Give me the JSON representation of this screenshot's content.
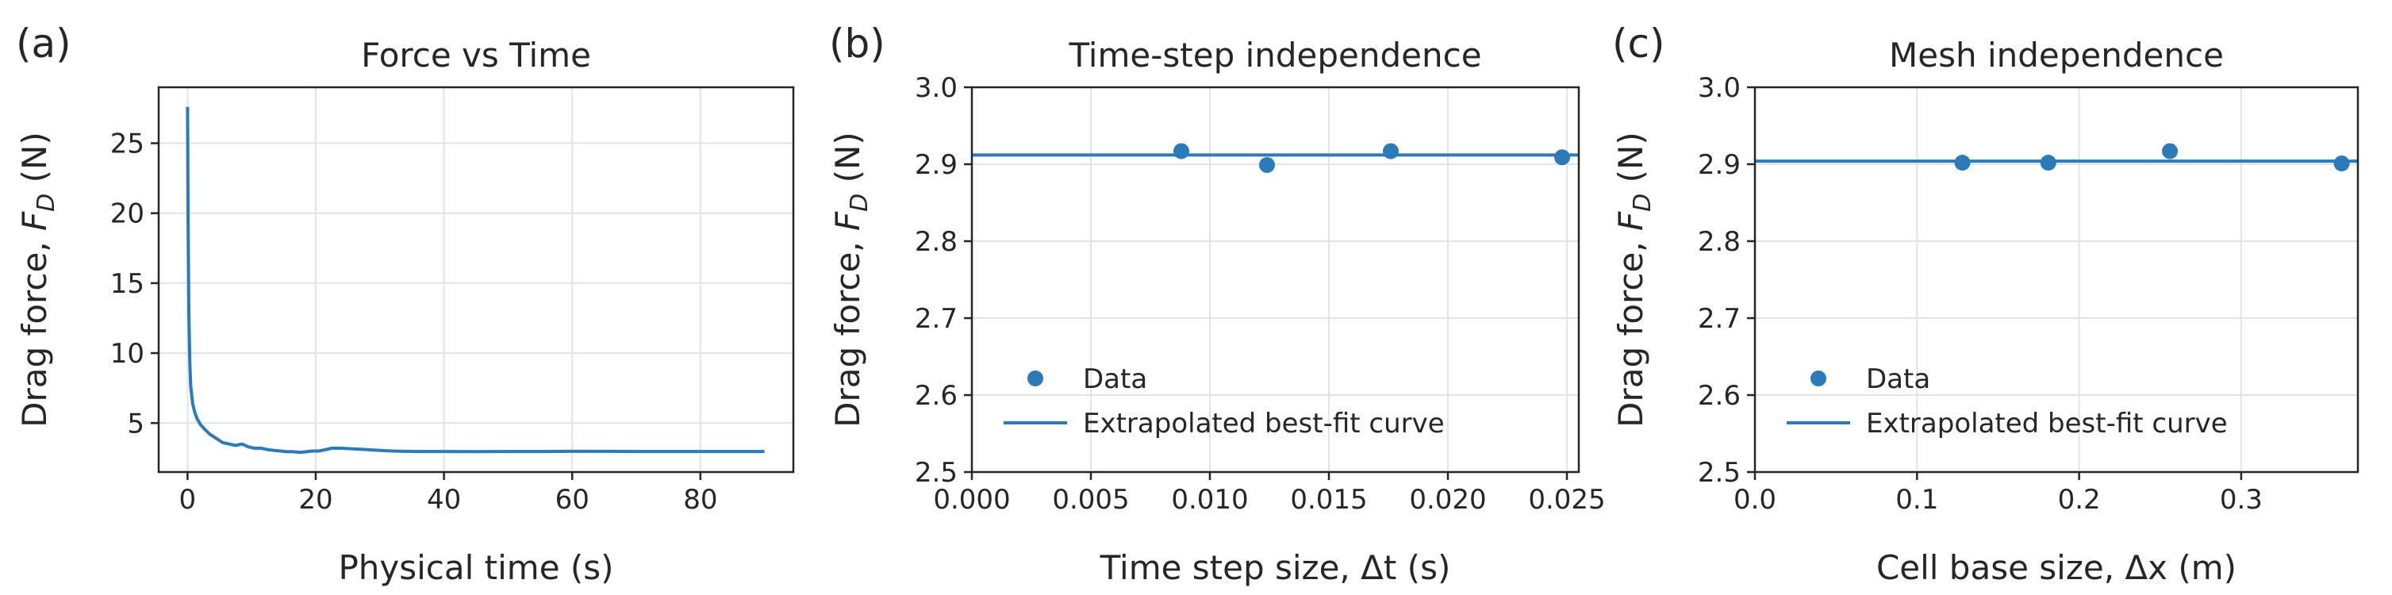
{
  "colors": {
    "series": "#2b7bba",
    "grid": "#e3e3e3",
    "axis": "#262626"
  },
  "chart_data": [
    {
      "panel_label": "(a)",
      "type": "line",
      "title": "Force vs Time",
      "xlabel": "Physical time (s)",
      "ylabel_prefix": "Drag force, ",
      "ylabel_symbol": "F",
      "ylabel_subscript": "D",
      "ylabel_suffix": " (N)",
      "xlim": [
        -4.5,
        94.5
      ],
      "ylim": [
        1.5,
        29
      ],
      "xticks": [
        0,
        20,
        40,
        60,
        80
      ],
      "xtick_labels": [
        "0",
        "20",
        "40",
        "60",
        "80"
      ],
      "yticks": [
        5,
        10,
        15,
        20,
        25
      ],
      "ytick_labels": [
        "5",
        "10",
        "15",
        "20",
        "25"
      ],
      "grid": true,
      "series": [
        {
          "style": "line",
          "x": [
            0,
            0.08,
            0.2,
            0.35,
            0.5,
            0.8,
            1.1,
            1.5,
            2,
            2.8,
            3.5,
            4.5,
            5.5,
            6.5,
            7.5,
            8.5,
            9.5,
            10.5,
            11.5,
            12.5,
            13.5,
            14.5,
            15.5,
            16.5,
            17.5,
            18.5,
            19.5,
            20.5,
            21.5,
            22.5,
            24,
            26,
            28,
            30,
            32,
            34,
            36,
            40,
            45,
            50,
            55,
            60,
            65,
            70,
            75,
            80,
            85,
            90
          ],
          "y": [
            27.6,
            20,
            13,
            9.5,
            7.6,
            6.4,
            5.8,
            5.3,
            4.9,
            4.5,
            4.2,
            3.9,
            3.6,
            3.5,
            3.4,
            3.5,
            3.3,
            3.2,
            3.2,
            3.1,
            3.05,
            3.0,
            2.95,
            2.95,
            2.9,
            2.95,
            3.0,
            3.0,
            3.1,
            3.2,
            3.2,
            3.15,
            3.1,
            3.05,
            3.0,
            2.98,
            2.97,
            2.97,
            2.96,
            2.97,
            2.97,
            2.98,
            2.98,
            2.97,
            2.97,
            2.97,
            2.97,
            2.97
          ]
        }
      ]
    },
    {
      "panel_label": "(b)",
      "type": "scatter",
      "title": "Time-step independence",
      "xlabel": "Time step size, Δt (s)",
      "ylabel_prefix": "Drag force, ",
      "ylabel_symbol": "F",
      "ylabel_subscript": "D",
      "ylabel_suffix": " (N)",
      "xlim": [
        0,
        0.0255
      ],
      "ylim": [
        2.5,
        3.0
      ],
      "xticks": [
        0,
        0.005,
        0.01,
        0.015,
        0.02,
        0.025
      ],
      "xtick_labels": [
        "0.000",
        "0.005",
        "0.010",
        "0.015",
        "0.020",
        "0.025"
      ],
      "yticks": [
        2.5,
        2.6,
        2.7,
        2.8,
        2.9,
        3.0
      ],
      "ytick_labels": [
        "2.5",
        "2.6",
        "2.7",
        "2.8",
        "2.9",
        "3.0"
      ],
      "grid": true,
      "legend": {
        "position": "lower-left",
        "entries": [
          "Data",
          "Extrapolated best-fit curve"
        ]
      },
      "series": [
        {
          "name": "Data",
          "style": "marker",
          "x": [
            0.0088,
            0.0124,
            0.0176,
            0.0248
          ],
          "y": [
            2.917,
            2.899,
            2.917,
            2.909
          ]
        },
        {
          "name": "Extrapolated best-fit curve",
          "style": "line",
          "x": [
            0,
            0.0255
          ],
          "y": [
            2.912,
            2.912
          ]
        }
      ]
    },
    {
      "panel_label": "(c)",
      "type": "scatter",
      "title": "Mesh independence",
      "xlabel": "Cell base size, Δx (m)",
      "ylabel_prefix": "Drag force, ",
      "ylabel_symbol": "F",
      "ylabel_subscript": "D",
      "ylabel_suffix": " (N)",
      "xlim": [
        0,
        0.372
      ],
      "ylim": [
        2.5,
        3.0
      ],
      "xticks": [
        0,
        0.1,
        0.2,
        0.3
      ],
      "xtick_labels": [
        "0.0",
        "0.1",
        "0.2",
        "0.3"
      ],
      "yticks": [
        2.5,
        2.6,
        2.7,
        2.8,
        2.9,
        3.0
      ],
      "ytick_labels": [
        "2.5",
        "2.6",
        "2.7",
        "2.8",
        "2.9",
        "3.0"
      ],
      "grid": true,
      "legend": {
        "position": "lower-left",
        "entries": [
          "Data",
          "Extrapolated best-fit curve"
        ]
      },
      "series": [
        {
          "name": "Data",
          "style": "marker",
          "x": [
            0.128,
            0.181,
            0.256,
            0.362
          ],
          "y": [
            2.902,
            2.902,
            2.917,
            2.901
          ]
        },
        {
          "name": "Extrapolated best-fit curve",
          "style": "line",
          "x": [
            0,
            0.372
          ],
          "y": [
            2.904,
            2.904
          ]
        }
      ]
    }
  ]
}
